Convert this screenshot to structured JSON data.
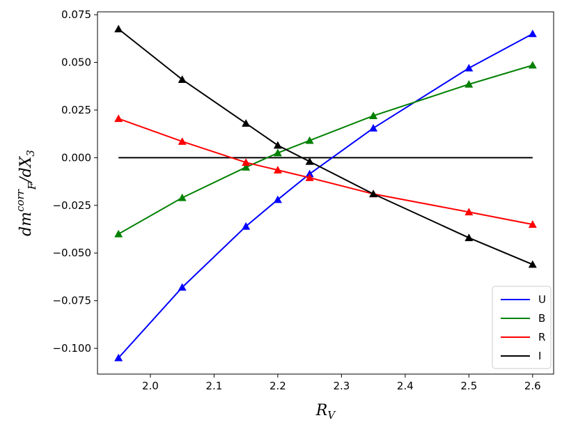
{
  "chart_data": {
    "type": "line",
    "x": [
      1.95,
      2.05,
      2.15,
      2.2,
      2.25,
      2.35,
      2.5,
      2.6
    ],
    "xlim": [
      1.917,
      2.633
    ],
    "ylim": [
      -0.1135,
      0.0765
    ],
    "xticks": [
      2.0,
      2.1,
      2.2,
      2.3,
      2.4,
      2.5,
      2.6
    ],
    "xtick_labels": [
      "2.0",
      "2.1",
      "2.2",
      "2.3",
      "2.4",
      "2.5",
      "2.6"
    ],
    "yticks": [
      -0.1,
      -0.075,
      -0.05,
      -0.025,
      0.0,
      0.025,
      0.05,
      0.075
    ],
    "ytick_labels": [
      "−0.100",
      "−0.075",
      "−0.050",
      "−0.025",
      "0.000",
      "0.025",
      "0.050",
      "0.075"
    ],
    "xlabel": {
      "main": "R",
      "sub": "V"
    },
    "ylabel": {
      "a": "dm",
      "sup": "corr",
      "sub": "F",
      "b": "/dX",
      "sub2": "3"
    },
    "series": [
      {
        "name": "U",
        "color": "#0000ff",
        "values": [
          -0.105,
          -0.068,
          -0.036,
          -0.022,
          -0.0085,
          0.0155,
          0.047,
          0.065
        ]
      },
      {
        "name": "B",
        "color": "#008000",
        "values": [
          -0.04,
          -0.021,
          -0.005,
          0.0025,
          0.009,
          0.022,
          0.0385,
          0.0485
        ]
      },
      {
        "name": "R",
        "color": "#ff0000",
        "values": [
          0.0205,
          0.0085,
          -0.0025,
          -0.0065,
          -0.0105,
          -0.019,
          -0.0285,
          -0.035
        ]
      },
      {
        "name": "I",
        "color": "#000000",
        "values": [
          0.0675,
          0.041,
          0.018,
          0.0065,
          -0.002,
          -0.019,
          -0.042,
          -0.056
        ]
      }
    ],
    "reference_line": {
      "y": 0.0,
      "x": [
        1.95,
        2.6
      ],
      "color": "#000000"
    },
    "marker": "triangle-up",
    "grid": false,
    "legend_position": "lower-right"
  }
}
